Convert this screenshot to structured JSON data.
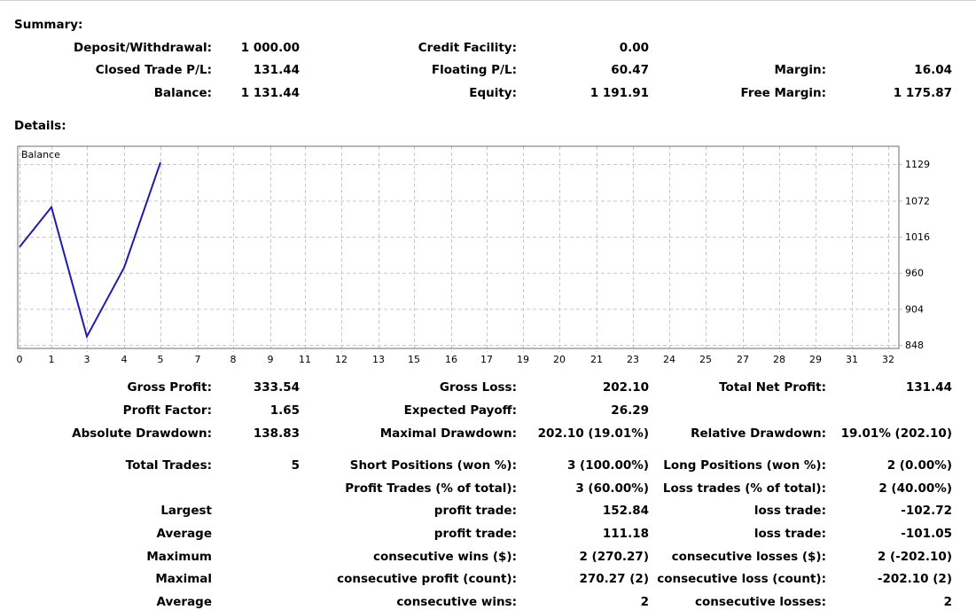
{
  "summary": {
    "title": "Summary:",
    "deposit_label": "Deposit/Withdrawal:",
    "deposit_value": "1 000.00",
    "credit_label": "Credit Facility:",
    "credit_value": "0.00",
    "closed_pl_label": "Closed Trade P/L:",
    "closed_pl_value": "131.44",
    "floating_pl_label": "Floating P/L:",
    "floating_pl_value": "60.47",
    "margin_label": "Margin:",
    "margin_value": "16.04",
    "balance_label": "Balance:",
    "balance_value": "1 131.44",
    "equity_label": "Equity:",
    "equity_value": "1 191.91",
    "free_margin_label": "Free Margin:",
    "free_margin_value": "1 175.87"
  },
  "details": {
    "title": "Details:",
    "rows": [
      [
        {
          "label": "Gross Profit:",
          "value": "333.54"
        },
        {
          "label": "Gross Loss:",
          "value": "202.10"
        },
        {
          "label": "Total Net Profit:",
          "value": "131.44"
        }
      ],
      [
        {
          "label": "Profit Factor:",
          "value": "1.65"
        },
        {
          "label": "Expected Payoff:",
          "value": "26.29"
        },
        {
          "label": "",
          "value": ""
        }
      ],
      [
        {
          "label": "Absolute Drawdown:",
          "value": "138.83"
        },
        {
          "label": "Maximal Drawdown:",
          "value": "202.10 (19.01%)"
        },
        {
          "label": "Relative Drawdown:",
          "value": "19.01% (202.10)"
        }
      ],
      [
        {
          "label": "Total Trades:",
          "value": "5"
        },
        {
          "label": "Short Positions (won %):",
          "value": "3 (100.00%)"
        },
        {
          "label": "Long Positions (won %):",
          "value": "2 (0.00%)"
        }
      ],
      [
        {
          "label": "",
          "value": ""
        },
        {
          "label": "Profit Trades (% of total):",
          "value": "3 (60.00%)"
        },
        {
          "label": "Loss trades (% of total):",
          "value": "2 (40.00%)"
        }
      ],
      [
        {
          "label": "Largest",
          "value": ""
        },
        {
          "label": "profit trade:",
          "value": "152.84"
        },
        {
          "label": "loss trade:",
          "value": "-102.72"
        }
      ],
      [
        {
          "label": "Average",
          "value": ""
        },
        {
          "label": "profit trade:",
          "value": "111.18"
        },
        {
          "label": "loss trade:",
          "value": "-101.05"
        }
      ],
      [
        {
          "label": "Maximum",
          "value": ""
        },
        {
          "label": "consecutive wins ($):",
          "value": "2 (270.27)"
        },
        {
          "label": "consecutive losses ($):",
          "value": "2 (-202.10)"
        }
      ],
      [
        {
          "label": "Maximal",
          "value": ""
        },
        {
          "label": "consecutive profit (count):",
          "value": "270.27 (2)"
        },
        {
          "label": "consecutive loss (count):",
          "value": "-202.10 (2)"
        }
      ],
      [
        {
          "label": "Average",
          "value": ""
        },
        {
          "label": "consecutive wins:",
          "value": "2"
        },
        {
          "label": "consecutive losses:",
          "value": "2"
        }
      ]
    ]
  },
  "chart_data": {
    "type": "line",
    "title": "Balance",
    "x_ticks": [
      "0",
      "1",
      "3",
      "4",
      "5",
      "7",
      "8",
      "9",
      "11",
      "12",
      "13",
      "15",
      "16",
      "17",
      "19",
      "20",
      "21",
      "23",
      "24",
      "25",
      "27",
      "28",
      "29",
      "31",
      "32"
    ],
    "y_ticks": [
      "1129",
      "1072",
      "1016",
      "960",
      "904",
      "848"
    ],
    "ylim": [
      848,
      1129
    ],
    "x": [
      0,
      1,
      3,
      4,
      5
    ],
    "y": [
      1000,
      1062,
      861,
      968,
      1131.44
    ],
    "grid": true,
    "line_color": "#1c1cb0"
  }
}
